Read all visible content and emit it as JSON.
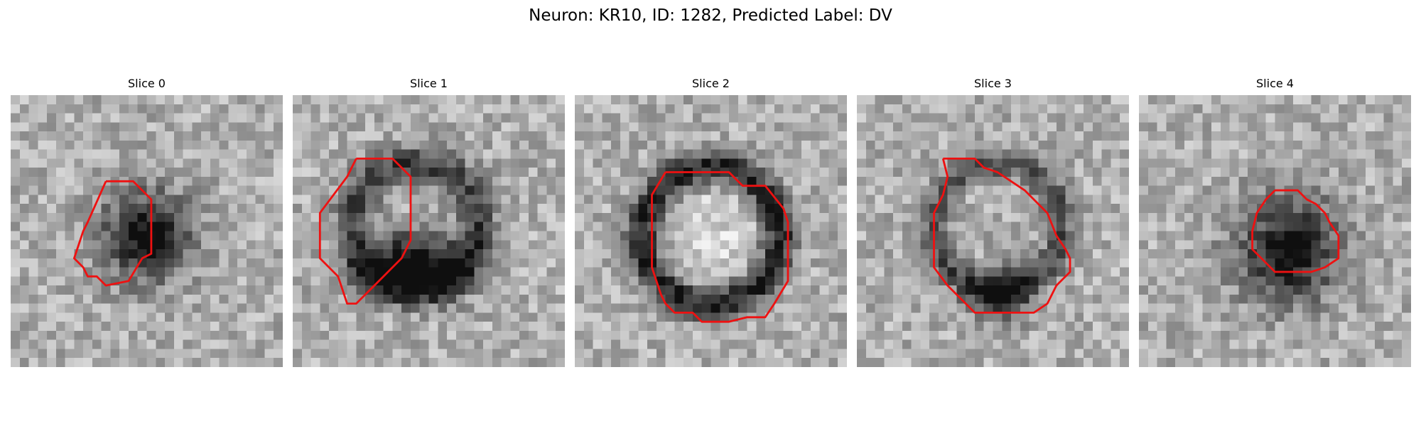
{
  "figure": {
    "title": "Neuron: KR10, ID: 1282, Predicted Label: DV",
    "grid_size": 30,
    "contour_color": "#ee1111",
    "colormap": "gray",
    "panels": [
      {
        "title": "Slice 0",
        "blobs": [
          {
            "cx": 15,
            "cy": 15.5,
            "rx": 5.5,
            "ry": 5.5,
            "depth": 150,
            "kind": "dark"
          },
          {
            "cx": 15.5,
            "cy": 16,
            "rx": 2.5,
            "ry": 2.5,
            "depth": 50,
            "kind": "dark"
          }
        ],
        "ring": null,
        "contour": [
          [
            10.5,
            9.5
          ],
          [
            13.5,
            9.5
          ],
          [
            15.5,
            11.5
          ],
          [
            15.5,
            17.5
          ],
          [
            14.5,
            18
          ],
          [
            13,
            20.5
          ],
          [
            10.5,
            21
          ],
          [
            9.5,
            20
          ],
          [
            8.5,
            20
          ],
          [
            8,
            19
          ],
          [
            7,
            18
          ],
          [
            8,
            15
          ],
          [
            8.5,
            14
          ],
          [
            10.5,
            9.5
          ]
        ]
      },
      {
        "title": "Slice 1",
        "blobs": [
          {
            "cx": 13.5,
            "cy": 18.5,
            "rx": 6,
            "ry": 3.5,
            "depth": 180,
            "kind": "dark"
          }
        ],
        "ring": {
          "cx": 13.5,
          "cy": 14.5,
          "r": 7,
          "width": 2,
          "depth": 110
        },
        "contour": [
          [
            7,
            7
          ],
          [
            11,
            7
          ],
          [
            13,
            9
          ],
          [
            13,
            14
          ],
          [
            13,
            16
          ],
          [
            12,
            18
          ],
          [
            10,
            20
          ],
          [
            7,
            23
          ],
          [
            6,
            23
          ],
          [
            5,
            20
          ],
          [
            3,
            18
          ],
          [
            3,
            16
          ],
          [
            3,
            13
          ],
          [
            6,
            9
          ],
          [
            7,
            7
          ]
        ]
      },
      {
        "title": "Slice 2",
        "blobs": [
          {
            "cx": 15,
            "cy": 15.5,
            "rx": 5.5,
            "ry": 6,
            "depth": -40,
            "kind": "light"
          }
        ],
        "ring": {
          "cx": 15,
          "cy": 15.5,
          "r": 7.5,
          "width": 1.8,
          "depth": 150
        },
        "contour": [
          [
            10,
            8.5
          ],
          [
            17,
            8.5
          ],
          [
            18.5,
            10
          ],
          [
            21,
            10
          ],
          [
            23,
            12.5
          ],
          [
            23.5,
            14
          ],
          [
            23.5,
            20.5
          ],
          [
            22,
            23
          ],
          [
            21,
            24.5
          ],
          [
            19,
            24.5
          ],
          [
            17,
            25
          ],
          [
            14,
            25
          ],
          [
            13,
            24
          ],
          [
            11,
            24
          ],
          [
            10,
            23
          ],
          [
            9.5,
            22
          ],
          [
            8.5,
            19
          ],
          [
            8.5,
            11
          ],
          [
            10,
            8.5
          ]
        ]
      },
      {
        "title": "Slice 3",
        "blobs": [
          {
            "cx": 16,
            "cy": 22,
            "rx": 4,
            "ry": 3,
            "depth": 120,
            "kind": "dark"
          }
        ],
        "ring": {
          "cx": 15.5,
          "cy": 14.5,
          "r": 7,
          "width": 1.6,
          "depth": 95
        },
        "contour": [
          [
            9.5,
            7
          ],
          [
            13,
            7
          ],
          [
            14,
            8
          ],
          [
            15.5,
            8.5
          ],
          [
            17,
            9.5
          ],
          [
            18.5,
            10.5
          ],
          [
            20,
            12
          ],
          [
            21,
            13
          ],
          [
            22,
            15.5
          ],
          [
            23,
            17
          ],
          [
            23.5,
            18
          ],
          [
            23.5,
            19.5
          ],
          [
            22,
            21
          ],
          [
            21,
            23
          ],
          [
            19.5,
            24
          ],
          [
            13,
            24
          ],
          [
            10,
            21
          ],
          [
            8.5,
            19
          ],
          [
            8.5,
            13
          ],
          [
            9.5,
            11
          ],
          [
            10,
            9
          ],
          [
            9.5,
            7
          ]
        ]
      },
      {
        "title": "Slice 4",
        "blobs": [
          {
            "cx": 16.5,
            "cy": 17,
            "rx": 6.5,
            "ry": 6.5,
            "depth": 140,
            "kind": "dark"
          },
          {
            "cx": 17,
            "cy": 17.5,
            "rx": 3,
            "ry": 3,
            "depth": 50,
            "kind": "dark"
          }
        ],
        "ring": null,
        "contour": [
          [
            15,
            10.5
          ],
          [
            17.5,
            10.5
          ],
          [
            18.5,
            11.5
          ],
          [
            19.5,
            12
          ],
          [
            20.5,
            13
          ],
          [
            21,
            14
          ],
          [
            22,
            15.5
          ],
          [
            22,
            18
          ],
          [
            20.5,
            19
          ],
          [
            19,
            19.5
          ],
          [
            15,
            19.5
          ],
          [
            14,
            18.5
          ],
          [
            12.5,
            17
          ],
          [
            12.5,
            15
          ],
          [
            13,
            13
          ],
          [
            14,
            11.5
          ],
          [
            15,
            10.5
          ]
        ]
      }
    ]
  }
}
